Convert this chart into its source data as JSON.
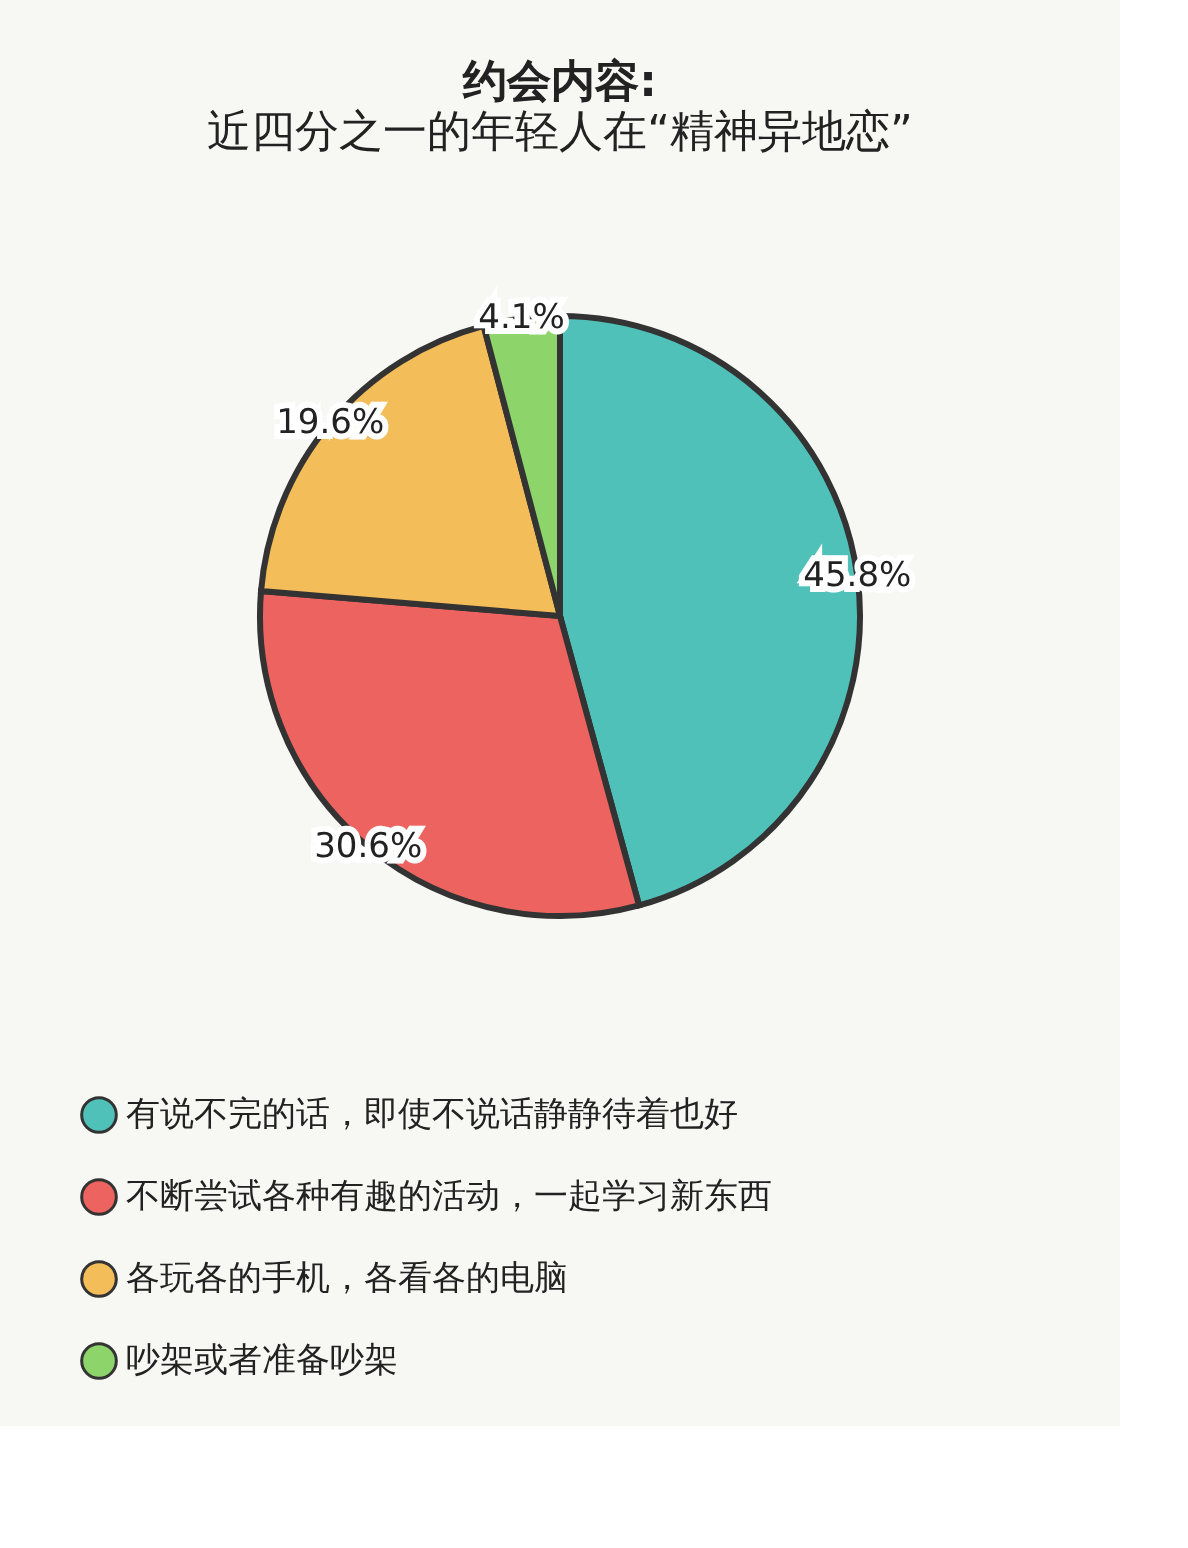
{
  "chart_data": {
    "type": "pie",
    "title": "约会内容:",
    "subtitle": "近四分之一的年轻人在“精神异地恋”",
    "categories": [
      "有说不完的话，即使不说话静静待着也好",
      "不断尝试各种有趣的活动，一起学习新东西",
      "各玩各的手机，各看各的电脑",
      "吵架或者准备吵架"
    ],
    "values": [
      45.8,
      30.6,
      19.6,
      4.1
    ],
    "colors": [
      "#4fc1b9",
      "#ec6360",
      "#f3bd5a",
      "#8dd46b"
    ],
    "value_labels": [
      "45.8%",
      "30.6%",
      "19.6%",
      "4.1%"
    ],
    "legend": "bottom"
  }
}
